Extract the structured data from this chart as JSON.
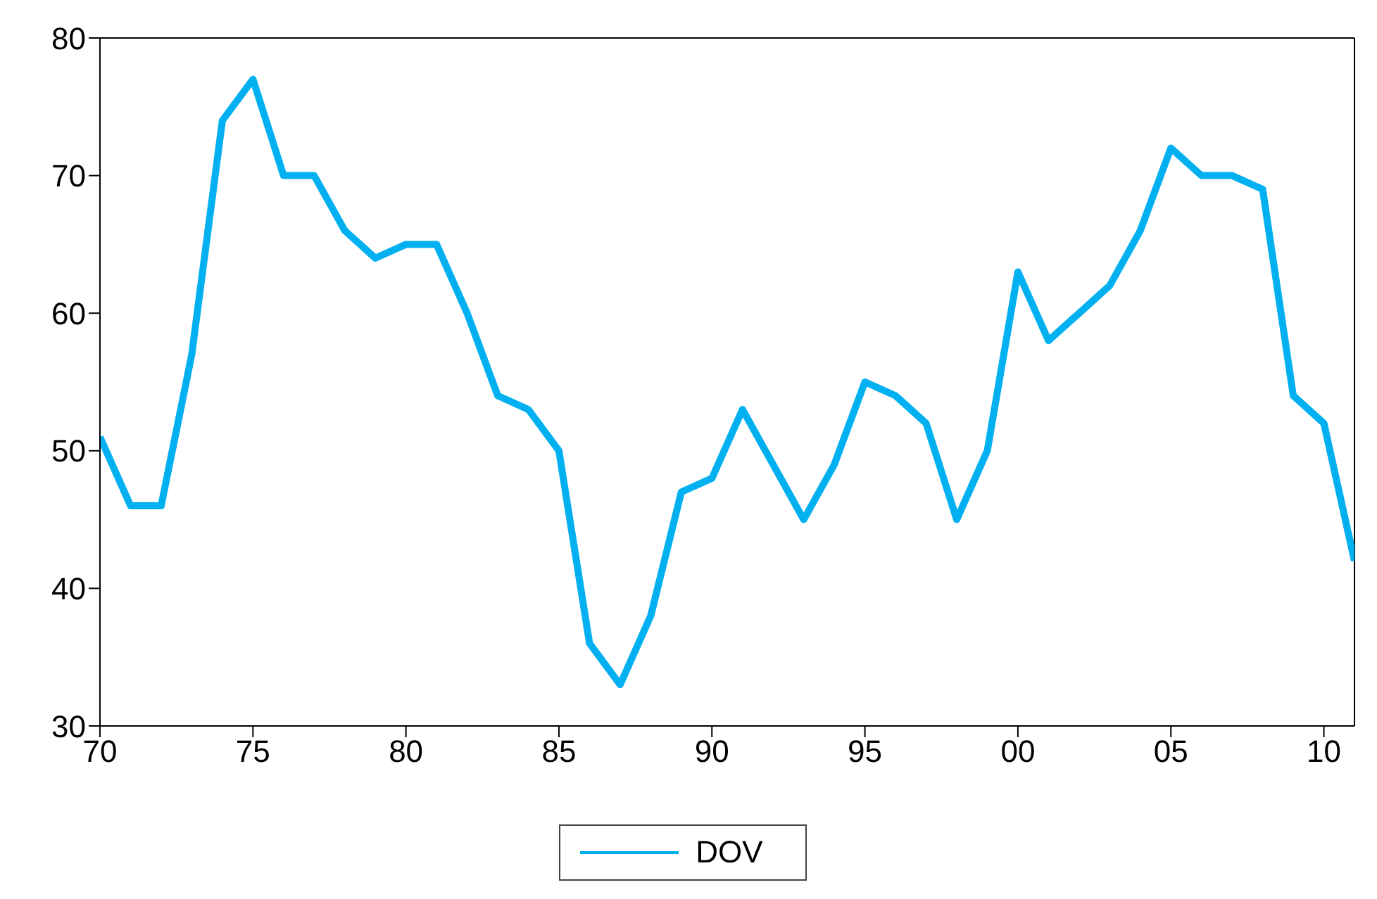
{
  "chart_data": {
    "type": "line",
    "x": [
      1970,
      1971,
      1972,
      1973,
      1974,
      1975,
      1976,
      1977,
      1978,
      1979,
      1980,
      1981,
      1982,
      1983,
      1984,
      1985,
      1986,
      1987,
      1988,
      1989,
      1990,
      1991,
      1992,
      1993,
      1994,
      1995,
      1996,
      1997,
      1998,
      1999,
      2000,
      2001,
      2002,
      2003,
      2004,
      2005,
      2006,
      2007,
      2008,
      2009,
      2010,
      2011
    ],
    "series": [
      {
        "name": "DOV",
        "color": "#00b0f0",
        "values": [
          51,
          46,
          46,
          57,
          74,
          77,
          70,
          70,
          66,
          64,
          65,
          65,
          60,
          54,
          53,
          50,
          36,
          33,
          38,
          47,
          48,
          53,
          49,
          45,
          49,
          55,
          54,
          52,
          45,
          50,
          63,
          58,
          60,
          62,
          66,
          72,
          70,
          70,
          69,
          54,
          52,
          42
        ]
      }
    ],
    "xlim": [
      1970,
      2011
    ],
    "xticks": [
      {
        "value": 1970,
        "label": "70"
      },
      {
        "value": 1975,
        "label": "75"
      },
      {
        "value": 1980,
        "label": "80"
      },
      {
        "value": 1985,
        "label": "85"
      },
      {
        "value": 1990,
        "label": "90"
      },
      {
        "value": 1995,
        "label": "95"
      },
      {
        "value": 2000,
        "label": "00"
      },
      {
        "value": 2005,
        "label": "05"
      },
      {
        "value": 2010,
        "label": "10"
      }
    ],
    "ylim": [
      30,
      80
    ],
    "yticks": [
      30,
      40,
      50,
      60,
      70,
      80
    ],
    "grid": false,
    "legend": "bottom",
    "marker": "none",
    "line_style": "solid"
  }
}
